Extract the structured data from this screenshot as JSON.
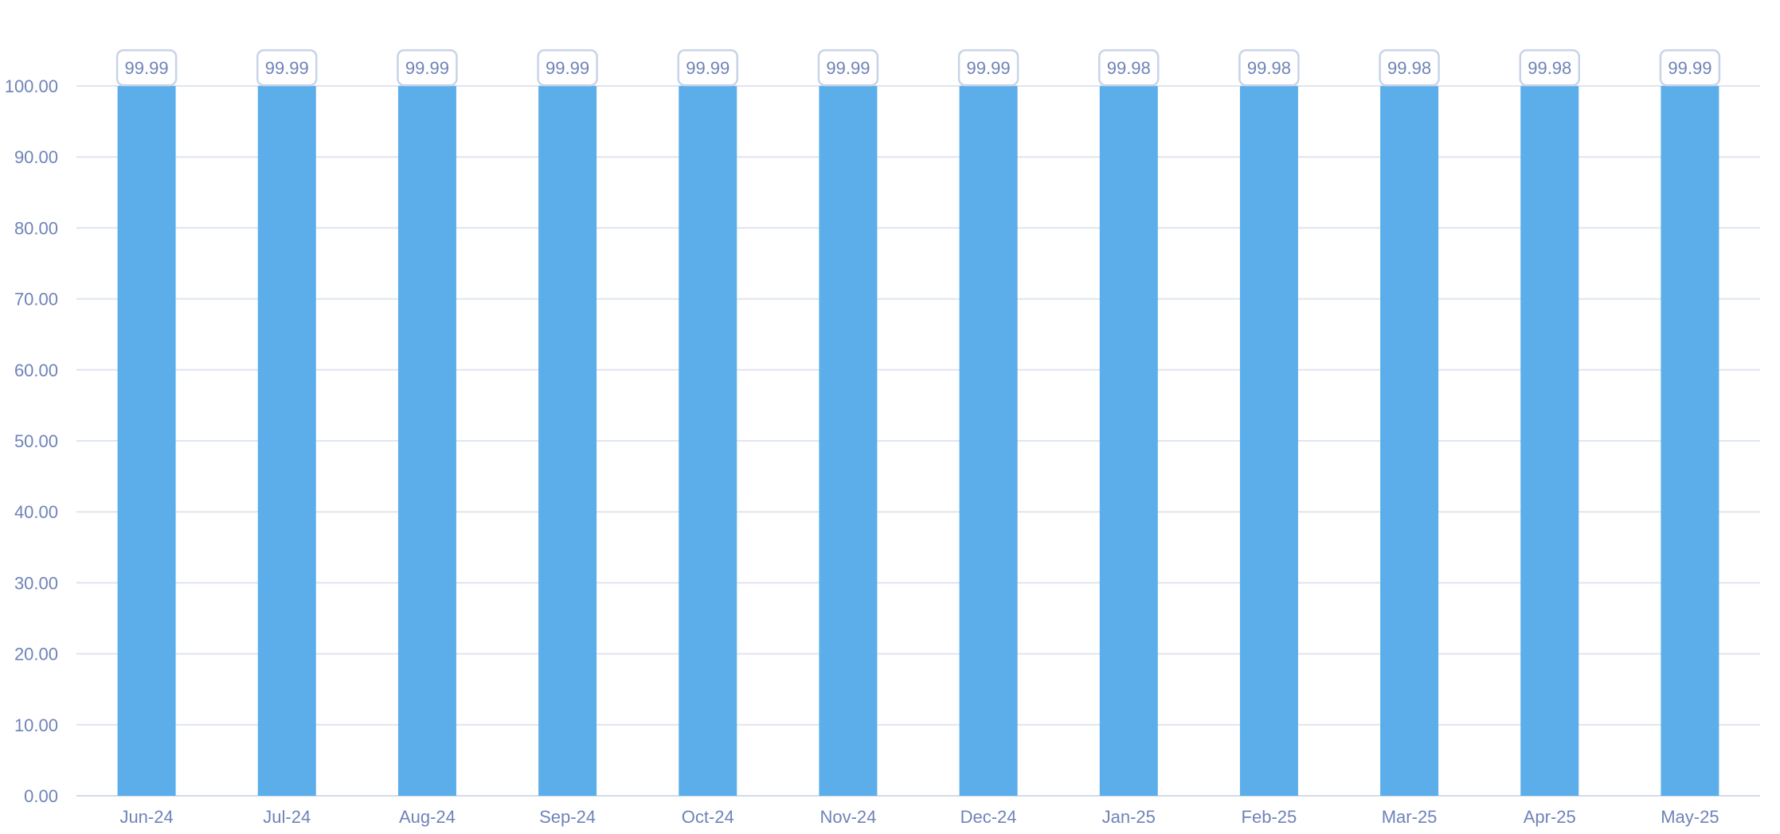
{
  "chart_data": {
    "type": "bar",
    "title": "",
    "xlabel": "",
    "ylabel": "",
    "categories": [
      "Jun-24",
      "Jul-24",
      "Aug-24",
      "Sep-24",
      "Oct-24",
      "Nov-24",
      "Dec-24",
      "Jan-25",
      "Feb-25",
      "Mar-25",
      "Apr-25",
      "May-25"
    ],
    "values": [
      99.99,
      99.99,
      99.99,
      99.99,
      99.99,
      99.99,
      99.99,
      99.98,
      99.98,
      99.98,
      99.98,
      99.99
    ],
    "data_labels": [
      "99.99",
      "99.99",
      "99.99",
      "99.99",
      "99.99",
      "99.99",
      "99.99",
      "99.98",
      "99.98",
      "99.98",
      "99.98",
      "99.99"
    ],
    "ylim": [
      0,
      100
    ],
    "yticks": [
      0,
      10,
      20,
      30,
      40,
      50,
      60,
      70,
      80,
      90,
      100
    ],
    "ytick_labels": [
      "0.00",
      "10.00",
      "20.00",
      "30.00",
      "40.00",
      "50.00",
      "60.00",
      "70.00",
      "80.00",
      "90.00",
      "100.00"
    ],
    "grid": true,
    "legend": "none",
    "colors": {
      "bar": "#5baee9",
      "grid": "#dfe5ef",
      "axis": "#d3dbe8",
      "text": "#6f83b8",
      "label_border": "#c9d3e8"
    }
  }
}
